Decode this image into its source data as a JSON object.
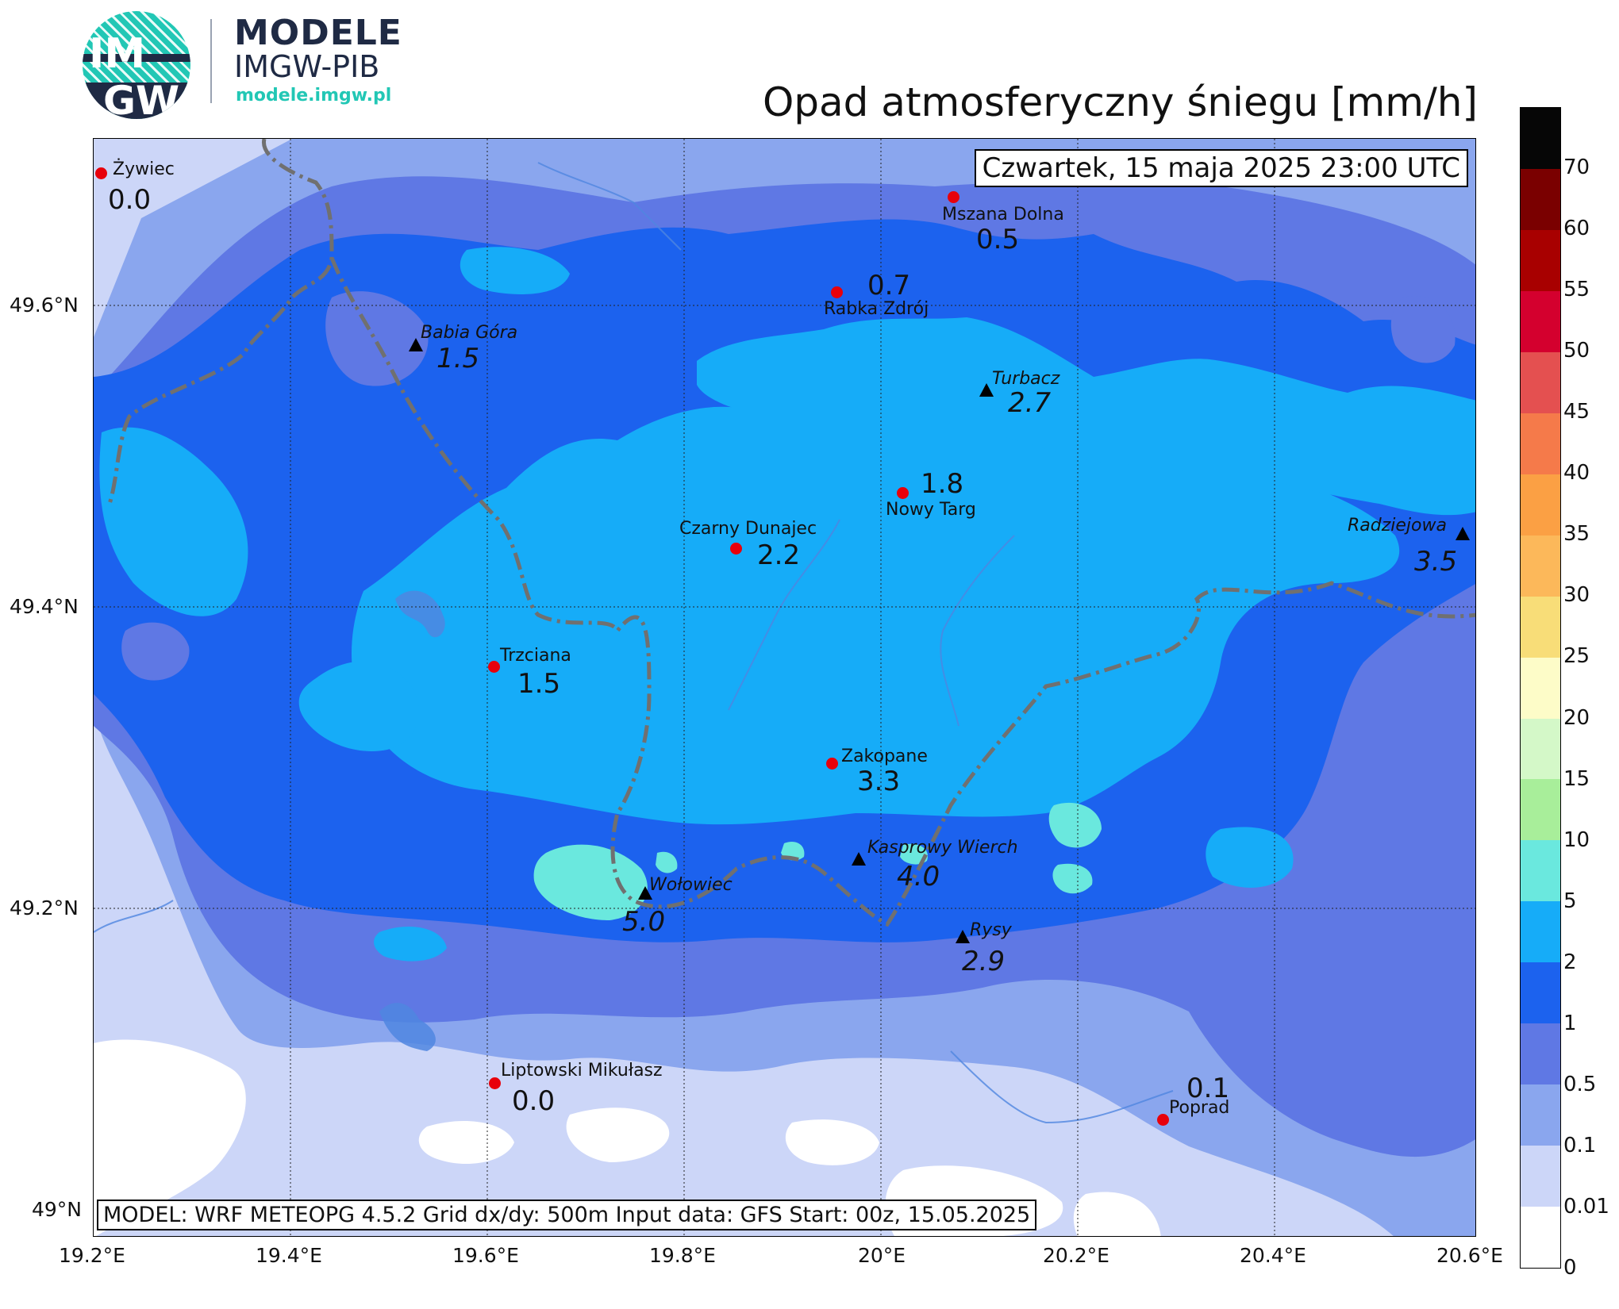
{
  "header": {
    "logo_text_top": "IM",
    "logo_text_bottom": "GW",
    "brand_title": "MODELE",
    "brand_subtitle": "IMGW-PIB",
    "brand_url": "modele.imgw.pl",
    "map_title": "Opad atmosferyczny śniegu [mm/h]"
  },
  "map": {
    "date_label": "Czwartek, 15 maja 2025 23:00 UTC",
    "model_info": "MODEL: WRF METEOPG 4.5.2 Grid dx/dy: 500m Input data: GFS Start: 00z, 15.05.2025",
    "lat_ticks": [
      "49.6°N",
      "49.4°N",
      "49.2°N",
      "49°N"
    ],
    "lon_ticks": [
      "19.2°E",
      "19.4°E",
      "19.6°E",
      "19.8°E",
      "20°E",
      "20.2°E",
      "20.4°E",
      "20.6°E"
    ],
    "stations": [
      {
        "name": "Żywiec",
        "value": "0.0"
      },
      {
        "name": "Mszana Dolna",
        "value": "0.5"
      },
      {
        "name": "Rabka Zdrój",
        "value": "0.7"
      },
      {
        "name": "Nowy Targ",
        "value": "1.8"
      },
      {
        "name": "Czarny Dunajec",
        "value": "2.2"
      },
      {
        "name": "Trzciana",
        "value": "1.5"
      },
      {
        "name": "Zakopane",
        "value": "3.3"
      },
      {
        "name": "Liptowski Mikułasz",
        "value": "0.0"
      },
      {
        "name": "Poprad",
        "value": "0.1"
      }
    ],
    "peaks": [
      {
        "name": "Babia Góra",
        "value": "1.5"
      },
      {
        "name": "Turbacz",
        "value": "2.7"
      },
      {
        "name": "Radziejowa",
        "value": "3.5"
      },
      {
        "name": "Wołowiec",
        "value": "5.0"
      },
      {
        "name": "Kasprowy Wierch",
        "value": "4.0"
      },
      {
        "name": "Rysy",
        "value": "2.9"
      }
    ]
  },
  "colorbar": {
    "levels": [
      "70",
      "60",
      "55",
      "50",
      "45",
      "40",
      "35",
      "30",
      "25",
      "20",
      "15",
      "10",
      "5",
      "2",
      "1",
      "0.5",
      "0.1",
      "0.01",
      "0"
    ],
    "colors": [
      "#060606",
      "#7a0000",
      "#a80000",
      "#d4002e",
      "#e45050",
      "#f57a4a",
      "#fba044",
      "#fcb85a",
      "#f8dd78",
      "#fdfcc8",
      "#d4f8c8",
      "#a8ee9a",
      "#6ae8de",
      "#16acf8",
      "#1c62ee",
      "#5f78e4",
      "#8aa6ee",
      "#ccd6f8",
      "#ffffff"
    ]
  },
  "fields": {
    "white": "#ffffff",
    "c001": "#ccd6f8",
    "c01": "#8aa6ee",
    "c05": "#5f78e4",
    "c1": "#1c62ee",
    "c2": "#16acf8",
    "c5": "#6ae8de",
    "border": "#707070",
    "river": "#4f86e0"
  }
}
